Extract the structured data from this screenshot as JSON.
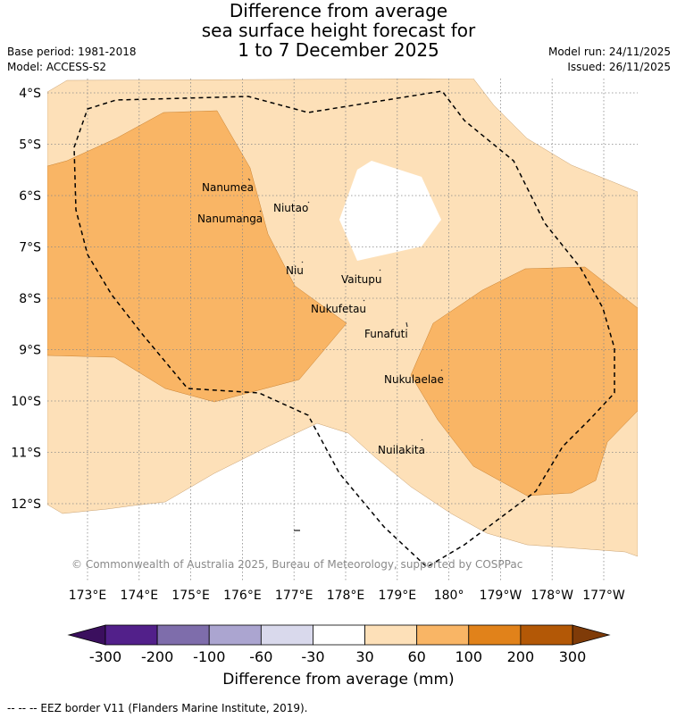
{
  "header": {
    "title_line1": "Difference from average",
    "title_line2": "sea surface height forecast for",
    "title_line3": "1 to 7 December 2025",
    "base_period": "Base period: 1981-2018",
    "model": "Model: ACCESS-S2",
    "model_run": "Model run: 24/11/2025",
    "issued": "Issued: 26/11/2025"
  },
  "map": {
    "lat_labels": [
      "4°S",
      "5°S",
      "6°S",
      "7°S",
      "8°S",
      "9°S",
      "10°S",
      "11°S",
      "12°S"
    ],
    "lon_labels": [
      "173°E",
      "174°E",
      "175°E",
      "176°E",
      "177°E",
      "178°E",
      "179°E",
      "180°",
      "179°W",
      "178°W",
      "177°W"
    ],
    "places": [
      {
        "name": "Nanumea"
      },
      {
        "name": "Nanumanga"
      },
      {
        "name": "Niutao"
      },
      {
        "name": "Niu"
      },
      {
        "name": "Vaitupu"
      },
      {
        "name": "Nukufetau"
      },
      {
        "name": "Funafuti"
      },
      {
        "name": "Nukulaelae"
      },
      {
        "name": "Nuilakita"
      }
    ],
    "copyright": "© Commonwealth of Australia 2025, Bureau of Meteorology, supported by COSPPac",
    "colors": {
      "c30_60": "#fde0b8",
      "c60_100": "#f9b565",
      "land_bg": "#ffffff"
    }
  },
  "colorbar": {
    "ticks": [
      "-300",
      "-200",
      "-100",
      "-60",
      "-30",
      "30",
      "60",
      "100",
      "200",
      "300"
    ],
    "colors": [
      "#52208a",
      "#7e6dab",
      "#aba5d0",
      "#d9d9ec",
      "#ffffff",
      "#fde0b8",
      "#f9b565",
      "#e1821a",
      "#b35806"
    ],
    "ext_low_color": "#3b0f5e",
    "ext_high_color": "#7f3b08",
    "label": "Difference from average (mm)"
  },
  "footer": {
    "legend": "-- -- -- EEZ border V11 (Flanders Marine Institute, 2019)."
  }
}
